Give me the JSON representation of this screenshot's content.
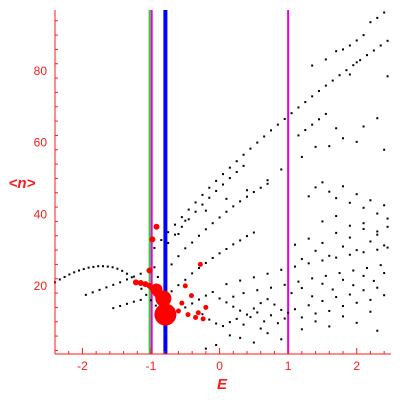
{
  "chart_data": {
    "type": "scatter",
    "title": "",
    "xlabel": "E",
    "ylabel": "<n>",
    "xlim": [
      -2.4,
      2.5
    ],
    "ylim": [
      1,
      97
    ],
    "xticks": [
      -2,
      -1,
      0,
      1,
      2
    ],
    "yticks": [
      20,
      40,
      60,
      80
    ],
    "axis_color": "#ff1a1a",
    "vertical_lines": [
      {
        "x": -1.02,
        "color": "#33cc33"
      },
      {
        "x": -0.99,
        "color": "#e600e6"
      },
      {
        "x": -0.79,
        "color": "#0000ff"
      },
      {
        "x": 1.0,
        "color": "#e600e6"
      }
    ],
    "series": [
      {
        "color": "#000000",
        "points": [
          [
            -2.4,
            21.0
          ],
          [
            -2.33,
            21.8
          ],
          [
            -2.26,
            22.5
          ],
          [
            -2.19,
            23.2
          ],
          [
            -2.12,
            23.8
          ],
          [
            -2.05,
            24.3
          ],
          [
            -1.98,
            24.7
          ],
          [
            -1.91,
            25.1
          ],
          [
            -1.84,
            25.3
          ],
          [
            -1.77,
            25.5
          ],
          [
            -1.7,
            25.5
          ],
          [
            -1.63,
            25.4
          ],
          [
            -1.56,
            25.2
          ],
          [
            -1.49,
            24.8
          ],
          [
            -1.42,
            24.2
          ],
          [
            -1.35,
            23.4
          ],
          [
            -1.28,
            22.4
          ],
          [
            -1.21,
            21.0
          ],
          [
            -1.14,
            19.2
          ],
          [
            -1.07,
            17.5
          ],
          [
            -1.0,
            16.0
          ],
          [
            -0.93,
            14.5
          ],
          [
            -1.95,
            17.5
          ],
          [
            -1.85,
            18.2
          ],
          [
            -1.75,
            18.9
          ],
          [
            -1.65,
            19.6
          ],
          [
            -1.55,
            20.3
          ],
          [
            -1.45,
            21.0
          ],
          [
            -1.35,
            21.8
          ],
          [
            -1.25,
            22.6
          ],
          [
            -1.15,
            23.4
          ],
          [
            -1.05,
            24.3
          ],
          [
            -0.95,
            25.2
          ],
          [
            -1.55,
            13.8
          ],
          [
            -1.45,
            14.4
          ],
          [
            -1.35,
            15.0
          ],
          [
            -1.25,
            15.6
          ],
          [
            -1.15,
            16.1
          ],
          [
            -0.95,
            30.6
          ],
          [
            -0.85,
            32.8
          ],
          [
            -0.75,
            35.0
          ],
          [
            -0.65,
            37.1
          ],
          [
            -0.55,
            39.2
          ],
          [
            -0.45,
            41.3
          ],
          [
            -0.35,
            43.3
          ],
          [
            -0.25,
            45.4
          ],
          [
            -0.15,
            47.4
          ],
          [
            -0.05,
            49.3
          ],
          [
            0.05,
            51.2
          ],
          [
            0.15,
            53.0
          ],
          [
            0.25,
            54.8
          ],
          [
            0.35,
            56.6
          ],
          [
            0.45,
            58.3
          ],
          [
            0.55,
            60.0
          ],
          [
            0.65,
            61.7
          ],
          [
            0.75,
            63.4
          ],
          [
            0.85,
            65.0
          ],
          [
            0.95,
            66.6
          ],
          [
            1.05,
            68.2
          ],
          [
            1.15,
            69.8
          ],
          [
            1.25,
            71.3
          ],
          [
            1.35,
            72.9
          ],
          [
            1.45,
            74.4
          ],
          [
            1.55,
            75.9
          ],
          [
            1.65,
            77.3
          ],
          [
            1.75,
            78.8
          ],
          [
            1.85,
            80.2
          ],
          [
            1.95,
            81.6
          ],
          [
            2.05,
            83.0
          ],
          [
            2.15,
            84.4
          ],
          [
            2.25,
            85.7
          ],
          [
            2.35,
            87.1
          ],
          [
            2.45,
            88.4
          ],
          [
            -0.75,
            32.0
          ],
          [
            -0.65,
            34.3
          ],
          [
            -0.55,
            36.5
          ],
          [
            -0.45,
            38.6
          ],
          [
            -0.35,
            40.7
          ],
          [
            -0.25,
            42.7
          ],
          [
            -0.15,
            44.6
          ],
          [
            -0.05,
            46.5
          ],
          [
            0.05,
            48.3
          ],
          [
            0.15,
            50.1
          ],
          [
            0.25,
            51.8
          ],
          [
            0.35,
            53.5
          ],
          [
            1.15,
            62.0
          ],
          [
            1.25,
            63.5
          ],
          [
            1.35,
            65.0
          ],
          [
            1.45,
            66.5
          ],
          [
            1.55,
            68.0
          ],
          [
            1.7,
            85.5
          ],
          [
            1.8,
            86.0
          ],
          [
            1.9,
            87.1
          ],
          [
            2.0,
            88.5
          ],
          [
            2.1,
            90.0
          ],
          [
            2.2,
            93.6
          ],
          [
            2.3,
            94.8
          ],
          [
            2.4,
            96.3
          ],
          [
            1.35,
            81.5
          ],
          [
            1.55,
            83.2
          ],
          [
            1.9,
            79.0
          ],
          [
            2.0,
            82.4
          ],
          [
            2.45,
            78.5
          ],
          [
            1.6,
            59.0
          ],
          [
            1.8,
            61.2
          ],
          [
            2.1,
            64.5
          ],
          [
            2.3,
            66.8
          ],
          [
            -0.6,
            34.5
          ],
          [
            -0.5,
            38.2
          ],
          [
            -0.2,
            41.0
          ],
          [
            0.1,
            44.3
          ],
          [
            0.4,
            46.7
          ],
          [
            0.7,
            49.5
          ],
          [
            0.9,
            52.5
          ],
          [
            1.2,
            56.0
          ],
          [
            1.4,
            58.8
          ],
          [
            1.7,
            64.0
          ],
          [
            2.0,
            60.2
          ],
          [
            2.4,
            58.0
          ],
          [
            -0.9,
            22.5
          ],
          [
            -0.7,
            26.0
          ],
          [
            -0.6,
            28.3
          ],
          [
            -0.5,
            30.5
          ],
          [
            -0.4,
            32.1
          ],
          [
            -0.3,
            34.0
          ],
          [
            -0.2,
            35.8
          ],
          [
            -0.1,
            37.5
          ],
          [
            0.0,
            39.1
          ],
          [
            0.1,
            40.7
          ],
          [
            0.2,
            42.2
          ],
          [
            0.3,
            43.6
          ],
          [
            0.4,
            44.9
          ],
          [
            0.5,
            46.2
          ],
          [
            0.6,
            47.4
          ],
          [
            0.7,
            48.5
          ],
          [
            1.3,
            45.0
          ],
          [
            1.4,
            47.5
          ],
          [
            1.5,
            48.9
          ],
          [
            1.6,
            46.3
          ],
          [
            1.7,
            44.5
          ],
          [
            1.8,
            47.8
          ],
          [
            1.9,
            43.2
          ],
          [
            2.0,
            45.6
          ],
          [
            2.1,
            41.8
          ],
          [
            2.2,
            43.9
          ],
          [
            2.3,
            40.2
          ],
          [
            2.4,
            42.5
          ],
          [
            2.45,
            38.8
          ],
          [
            1.5,
            38.0
          ],
          [
            1.7,
            39.5
          ],
          [
            1.9,
            36.8
          ],
          [
            2.1,
            37.5
          ],
          [
            2.3,
            35.2
          ],
          [
            -0.7,
            18.5
          ],
          [
            -0.6,
            20.2
          ],
          [
            -0.5,
            21.7
          ],
          [
            -0.4,
            23.5
          ],
          [
            -0.3,
            25.0
          ],
          [
            -0.2,
            26.4
          ],
          [
            -0.1,
            27.8
          ],
          [
            0.0,
            29.1
          ],
          [
            0.1,
            30.3
          ],
          [
            0.2,
            31.6
          ],
          [
            0.3,
            32.7
          ],
          [
            0.4,
            33.9
          ],
          [
            0.5,
            34.9
          ],
          [
            0.1,
            20.5
          ],
          [
            0.3,
            21.5
          ],
          [
            0.5,
            22.4
          ],
          [
            0.7,
            23.4
          ],
          [
            0.9,
            24.5
          ],
          [
            1.1,
            25.4
          ],
          [
            1.3,
            26.3
          ],
          [
            1.5,
            27.1
          ],
          [
            1.7,
            27.9
          ],
          [
            1.9,
            28.7
          ],
          [
            2.1,
            29.4
          ],
          [
            2.3,
            30.1
          ],
          [
            2.45,
            30.7
          ],
          [
            0.2,
            17.0
          ],
          [
            0.35,
            18.0
          ],
          [
            0.55,
            18.8
          ],
          [
            0.75,
            19.5
          ],
          [
            0.95,
            20.3
          ],
          [
            1.15,
            21.2
          ],
          [
            1.35,
            22.1
          ],
          [
            1.55,
            22.8
          ],
          [
            1.75,
            23.6
          ],
          [
            1.95,
            24.3
          ],
          [
            2.15,
            25.0
          ],
          [
            2.35,
            25.8
          ],
          [
            -0.5,
            14.0
          ],
          [
            -0.4,
            15.1
          ],
          [
            -0.3,
            16.2
          ],
          [
            -0.2,
            17.3
          ],
          [
            -0.1,
            18.3
          ],
          [
            0.0,
            16.5
          ],
          [
            0.1,
            15.4
          ],
          [
            0.2,
            14.2
          ],
          [
            0.3,
            13.1
          ],
          [
            0.4,
            12.0
          ],
          [
            0.5,
            13.7
          ],
          [
            0.6,
            15.2
          ],
          [
            0.7,
            16.3
          ],
          [
            0.8,
            14.8
          ],
          [
            0.9,
            13.3
          ],
          [
            1.0,
            12.5
          ],
          [
            -0.35,
            11.5
          ],
          [
            -0.25,
            12.1
          ],
          [
            -0.15,
            10.6
          ],
          [
            -0.05,
            9.5
          ],
          [
            0.05,
            8.8
          ],
          [
            0.15,
            9.9
          ],
          [
            0.25,
            10.8
          ],
          [
            0.35,
            9.2
          ],
          [
            0.45,
            11.3
          ],
          [
            0.55,
            12.6
          ],
          [
            0.65,
            10.1
          ],
          [
            0.75,
            11.8
          ],
          [
            0.85,
            9.6
          ],
          [
            0.95,
            10.9
          ],
          [
            1.1,
            13.5
          ],
          [
            1.2,
            11.2
          ],
          [
            1.3,
            14.6
          ],
          [
            1.4,
            12.3
          ],
          [
            1.5,
            15.8
          ],
          [
            1.6,
            13.0
          ],
          [
            1.7,
            16.9
          ],
          [
            1.8,
            14.4
          ],
          [
            1.9,
            17.6
          ],
          [
            2.0,
            15.3
          ],
          [
            2.1,
            18.8
          ],
          [
            2.2,
            16.1
          ],
          [
            2.3,
            19.5
          ],
          [
            2.4,
            17.4
          ],
          [
            1.05,
            18.0
          ],
          [
            1.2,
            19.4
          ],
          [
            1.35,
            17.1
          ],
          [
            1.5,
            20.6
          ],
          [
            1.65,
            19.0
          ],
          [
            1.8,
            21.7
          ],
          [
            1.95,
            20.2
          ],
          [
            2.1,
            22.8
          ],
          [
            2.25,
            21.4
          ],
          [
            2.4,
            23.6
          ],
          [
            1.1,
            31.5
          ],
          [
            1.3,
            33.2
          ],
          [
            1.5,
            32.0
          ],
          [
            1.7,
            34.8
          ],
          [
            1.9,
            33.5
          ],
          [
            2.1,
            35.9
          ],
          [
            2.3,
            34.3
          ],
          [
            2.45,
            36.5
          ],
          [
            1.2,
            27.5
          ],
          [
            1.4,
            29.8
          ],
          [
            1.6,
            28.4
          ],
          [
            1.8,
            31.0
          ],
          [
            2.0,
            30.0
          ],
          [
            2.2,
            32.4
          ],
          [
            2.4,
            31.3
          ],
          [
            -0.05,
            3.5
          ],
          [
            -0.2,
            2.5
          ],
          [
            0.3,
            5.5
          ],
          [
            0.5,
            4.2
          ],
          [
            0.7,
            6.8
          ],
          [
            0.9,
            5.1
          ],
          [
            1.2,
            7.9
          ],
          [
            1.6,
            8.7
          ],
          [
            2.0,
            9.7
          ],
          [
            2.3,
            7.5
          ],
          [
            0.15,
            6.2
          ],
          [
            0.6,
            8.1
          ],
          [
            1.4,
            10.1
          ],
          [
            1.8,
            11.5
          ],
          [
            2.2,
            12.8
          ]
        ]
      },
      {
        "color": "#ff0000",
        "points": [
          [
            -1.22,
            21.0
          ],
          [
            -1.15,
            20.8
          ],
          [
            -1.08,
            20.5
          ],
          [
            -1.02,
            20.0
          ],
          [
            -0.98,
            19.4
          ],
          [
            -0.96,
            18.6
          ],
          [
            -0.93,
            17.9
          ],
          [
            -0.9,
            17.1
          ],
          [
            -0.86,
            16.4
          ],
          [
            -0.98,
            33.0
          ],
          [
            -0.92,
            36.5
          ],
          [
            -1.02,
            24.3
          ],
          [
            -0.6,
            13.0
          ],
          [
            -0.55,
            15.2
          ],
          [
            -0.5,
            20.0
          ],
          [
            -0.46,
            12.0
          ],
          [
            -0.41,
            17.3
          ],
          [
            -0.35,
            11.2
          ],
          [
            -0.31,
            12.5
          ],
          [
            -0.28,
            26.0
          ],
          [
            -0.24,
            10.8
          ],
          [
            -0.2,
            14.0
          ]
        ],
        "sizes": [
          3,
          3,
          3,
          3,
          3,
          3,
          3,
          3,
          3,
          3,
          3,
          3,
          2.5,
          2.5,
          2.5,
          2.5,
          2.5,
          2.5,
          2.5,
          2.5,
          2.5,
          2.5
        ]
      },
      {
        "color": "#ff0000",
        "points": [
          [
            -0.79,
            12.0
          ],
          [
            -0.82,
            16.5
          ],
          [
            -0.92,
            19.0
          ]
        ],
        "sizes": [
          11,
          8,
          6
        ]
      }
    ]
  }
}
